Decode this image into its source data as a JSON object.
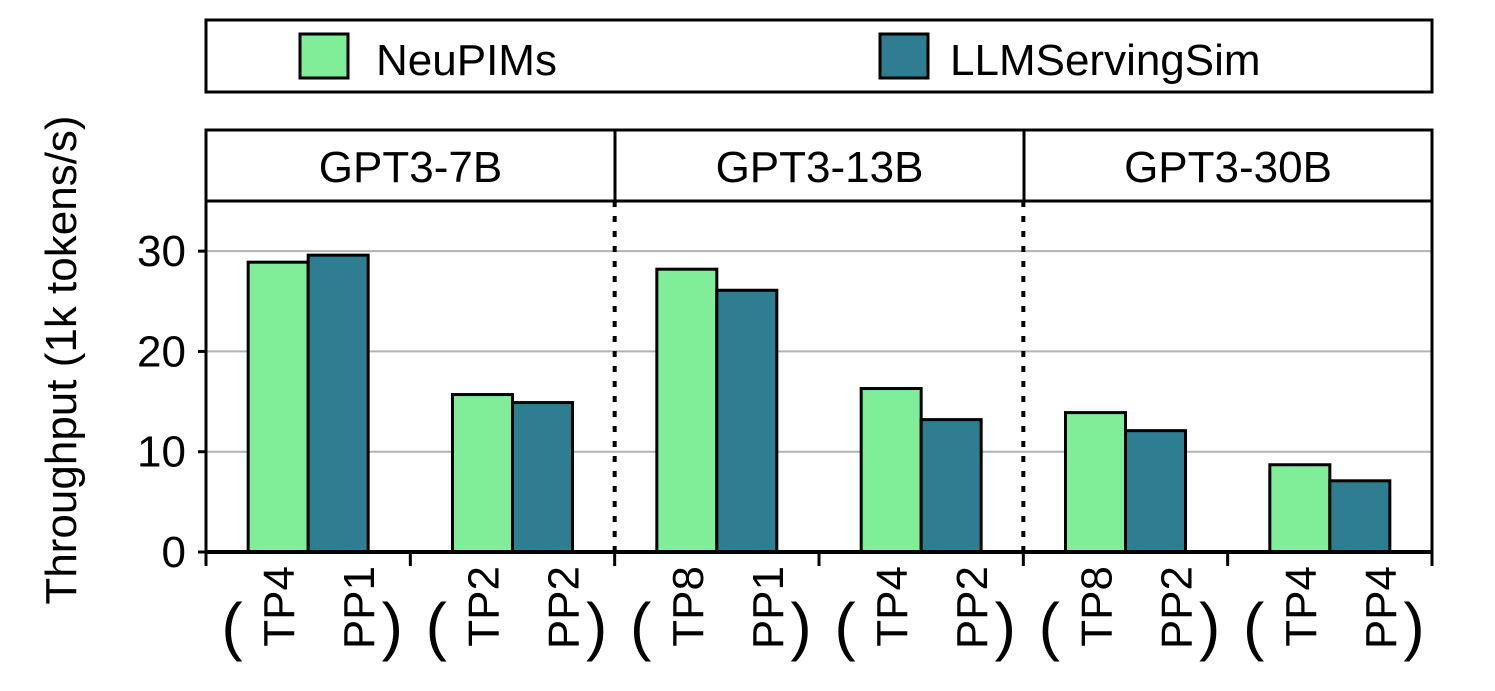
{
  "chart_data": {
    "type": "bar",
    "ylabel": "Throughput (1k tokens/s)",
    "ylim": [
      0,
      35
    ],
    "yticks": [
      0,
      10,
      20,
      30
    ],
    "grid": true,
    "legend_position": "top",
    "series": [
      {
        "name": "NeuPIMs",
        "color": "#80ED99"
      },
      {
        "name": "LLMServingSim",
        "color": "#2E7D90"
      }
    ],
    "groups": [
      {
        "label": "GPT3-7B",
        "configs": [
          {
            "tp": "TP4",
            "pp": "PP1",
            "values": [
              28.9,
              29.6
            ]
          },
          {
            "tp": "TP2",
            "pp": "PP2",
            "values": [
              15.7,
              14.9
            ]
          }
        ]
      },
      {
        "label": "GPT3-13B",
        "configs": [
          {
            "tp": "TP8",
            "pp": "PP1",
            "values": [
              28.2,
              26.1
            ]
          },
          {
            "tp": "TP4",
            "pp": "PP2",
            "values": [
              16.3,
              13.2
            ]
          }
        ]
      },
      {
        "label": "GPT3-30B",
        "configs": [
          {
            "tp": "TP8",
            "pp": "PP2",
            "values": [
              13.9,
              12.1
            ]
          },
          {
            "tp": "TP4",
            "pp": "PP4",
            "values": [
              8.7,
              7.1
            ]
          }
        ]
      }
    ]
  }
}
